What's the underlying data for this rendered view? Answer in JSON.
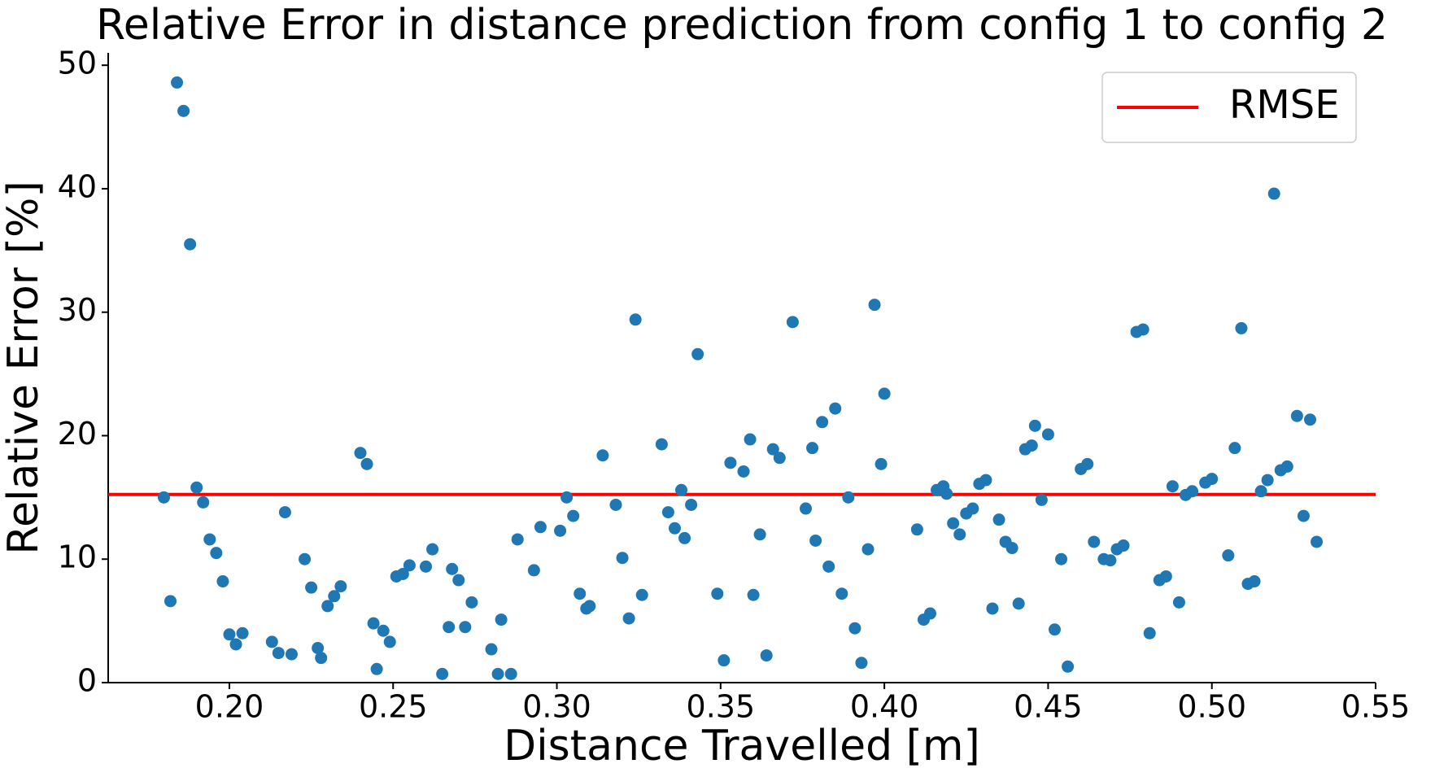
{
  "chart_data": {
    "type": "scatter",
    "title": "Relative Error in distance prediction from config 1 to config 2",
    "x_label": "Distance Travelled [m]",
    "y_label": "Relative Error [%]",
    "xlim": [
      0.163,
      0.55
    ],
    "ylim": [
      0,
      51
    ],
    "xticks": [
      {
        "value": 0.2,
        "label": "0.20"
      },
      0.25,
      {
        "value": 0.3,
        "label": "0.30"
      },
      0.35,
      {
        "value": 0.4,
        "label": "0.40"
      },
      0.45,
      {
        "value": 0.5,
        "label": "0.50"
      },
      0.55
    ],
    "yticks": [
      0,
      10,
      20,
      30,
      40,
      50
    ],
    "grid": false,
    "legend": "upper right",
    "x": [
      0.18,
      0.182,
      0.184,
      0.186,
      0.188,
      0.19,
      0.192,
      0.194,
      0.196,
      0.198,
      0.2,
      0.202,
      0.204,
      0.213,
      0.215,
      0.217,
      0.219,
      0.223,
      0.225,
      0.227,
      0.228,
      0.23,
      0.232,
      0.234,
      0.24,
      0.242,
      0.244,
      0.245,
      0.247,
      0.249,
      0.251,
      0.253,
      0.255,
      0.26,
      0.262,
      0.265,
      0.267,
      0.268,
      0.27,
      0.272,
      0.274,
      0.28,
      0.282,
      0.283,
      0.286,
      0.288,
      0.293,
      0.295,
      0.301,
      0.303,
      0.305,
      0.307,
      0.309,
      0.31,
      0.314,
      0.318,
      0.32,
      0.322,
      0.324,
      0.326,
      0.332,
      0.334,
      0.336,
      0.338,
      0.339,
      0.341,
      0.343,
      0.349,
      0.351,
      0.353,
      0.357,
      0.359,
      0.36,
      0.362,
      0.364,
      0.366,
      0.368,
      0.372,
      0.376,
      0.378,
      0.379,
      0.381,
      0.383,
      0.385,
      0.387,
      0.389,
      0.391,
      0.393,
      0.395,
      0.397,
      0.399,
      0.4,
      0.41,
      0.412,
      0.414,
      0.416,
      0.418,
      0.419,
      0.421,
      0.423,
      0.425,
      0.427,
      0.429,
      0.431,
      0.433,
      0.435,
      0.437,
      0.439,
      0.441,
      0.443,
      0.445,
      0.446,
      0.448,
      0.45,
      0.452,
      0.454,
      0.456,
      0.46,
      0.462,
      0.464,
      0.467,
      0.469,
      0.471,
      0.473,
      0.477,
      0.479,
      0.481,
      0.484,
      0.486,
      0.488,
      0.49,
      0.492,
      0.494,
      0.498,
      0.5,
      0.505,
      0.507,
      0.509,
      0.511,
      0.513,
      0.515,
      0.517,
      0.519,
      0.521,
      0.523,
      0.526,
      0.528,
      0.53,
      0.532
    ],
    "series": [
      {
        "name": "Relative Error",
        "color": "#1f77b4",
        "values": [
          15.0,
          6.6,
          48.6,
          46.3,
          35.5,
          15.8,
          14.6,
          11.6,
          10.5,
          8.2,
          3.9,
          3.1,
          4.0,
          3.3,
          2.4,
          13.8,
          2.3,
          10.0,
          7.7,
          2.8,
          2.0,
          6.2,
          7.0,
          7.8,
          18.6,
          17.7,
          4.8,
          1.1,
          4.2,
          3.3,
          8.6,
          8.8,
          9.5,
          9.4,
          10.8,
          0.7,
          4.5,
          9.2,
          8.3,
          4.5,
          6.5,
          2.7,
          0.7,
          5.1,
          0.7,
          11.6,
          9.1,
          12.6,
          12.3,
          15.0,
          13.5,
          7.2,
          6.0,
          6.2,
          18.4,
          14.4,
          10.1,
          5.2,
          29.4,
          7.1,
          19.3,
          13.8,
          12.5,
          15.6,
          11.7,
          14.4,
          26.6,
          7.2,
          1.8,
          17.8,
          17.1,
          19.7,
          7.1,
          12.0,
          2.2,
          18.9,
          18.2,
          29.2,
          14.1,
          19.0,
          11.5,
          21.1,
          9.4,
          22.2,
          7.2,
          15.0,
          4.4,
          1.6,
          10.8,
          30.6,
          17.7,
          23.4,
          12.4,
          5.1,
          5.6,
          15.6,
          15.9,
          15.3,
          12.9,
          12.0,
          13.7,
          14.1,
          16.1,
          16.4,
          6.0,
          13.2,
          11.4,
          10.9,
          6.4,
          18.9,
          19.2,
          20.8,
          14.8,
          20.1,
          4.3,
          10.0,
          1.3,
          17.3,
          17.7,
          11.4,
          10.0,
          9.9,
          10.8,
          11.1,
          28.4,
          28.6,
          4.0,
          8.3,
          8.6,
          15.9,
          6.5,
          15.2,
          15.5,
          16.2,
          16.5,
          10.3,
          19.0,
          28.7,
          8.0,
          8.2,
          15.5,
          16.4,
          39.6,
          17.2,
          17.5,
          21.6,
          13.5,
          21.3,
          11.4
        ]
      }
    ],
    "reference_lines": [
      {
        "name": "RMSE",
        "value": 15.24,
        "color": "#ff0000"
      }
    ]
  }
}
